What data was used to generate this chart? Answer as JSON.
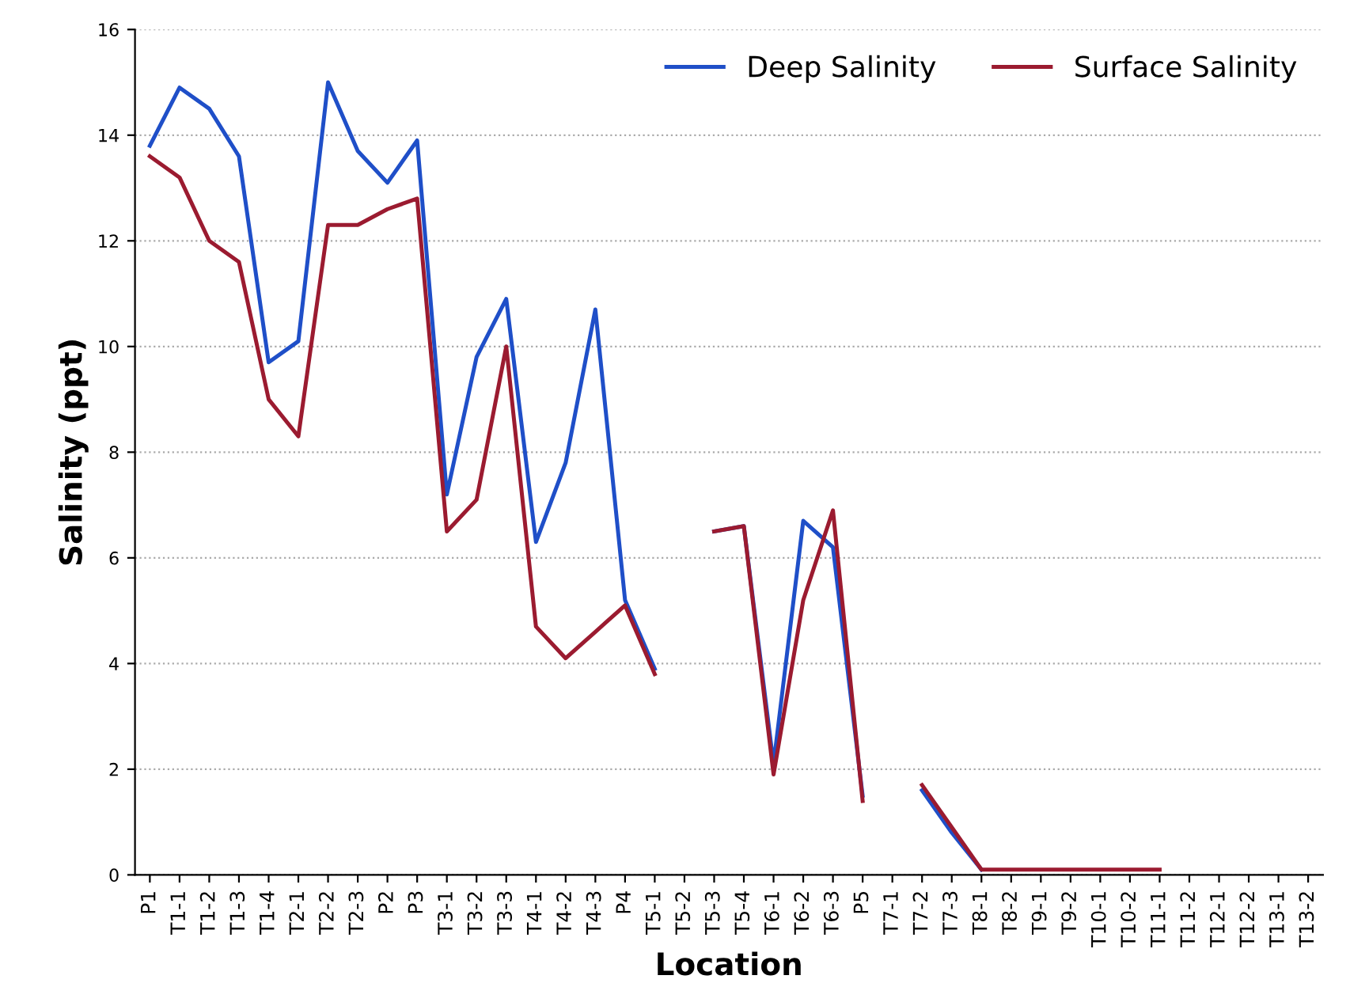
{
  "chart_data": {
    "type": "line",
    "xlabel": "Location",
    "ylabel": "Salinity (ppt)",
    "categories": [
      "P1",
      "T1-1",
      "T1-2",
      "T1-3",
      "T1-4",
      "T2-1",
      "T2-2",
      "T2-3",
      "P2",
      "P3",
      "T3-1",
      "T3-2",
      "T3-3",
      "T4-1",
      "T4-2",
      "T4-3",
      "P4",
      "T5-1",
      "T5-2",
      "T5-3",
      "T5-4",
      "T6-1",
      "T6-2",
      "T6-3",
      "P5",
      "T7-1",
      "T7-2",
      "T7-3",
      "T8-1",
      "T8-2",
      "T9-1",
      "T9-2",
      "T10-1",
      "T10-2",
      "T11-1",
      "T11-2",
      "T12-1",
      "T12-2",
      "T13-1",
      "T13-2"
    ],
    "series": [
      {
        "name": "Deep Salinity",
        "color": "#1f4fc8",
        "values": [
          13.8,
          14.9,
          14.5,
          13.6,
          9.7,
          10.1,
          15.0,
          13.7,
          13.1,
          13.9,
          7.2,
          9.8,
          10.9,
          6.3,
          7.8,
          10.7,
          5.2,
          3.9,
          null,
          6.5,
          6.6,
          2.1,
          6.7,
          6.2,
          1.5,
          null,
          1.6,
          0.8,
          0.1,
          null,
          null,
          null,
          null,
          null,
          null,
          null,
          null,
          null,
          null,
          null
        ]
      },
      {
        "name": "Surface Salinity",
        "color": "#9b1b30",
        "values": [
          13.6,
          13.2,
          12.0,
          11.6,
          9.0,
          8.3,
          12.3,
          12.3,
          12.6,
          12.8,
          6.5,
          7.1,
          10.0,
          4.7,
          4.1,
          4.6,
          5.1,
          3.8,
          null,
          6.5,
          6.6,
          1.9,
          5.2,
          6.9,
          1.4,
          null,
          1.7,
          0.9,
          0.1,
          0.1,
          0.1,
          0.1,
          0.1,
          0.1,
          0.1,
          null,
          null,
          null,
          null,
          null
        ]
      }
    ],
    "ylim": [
      0,
      16
    ],
    "yticks": [
      0,
      2,
      4,
      6,
      8,
      10,
      12,
      14,
      16
    ],
    "grid": "y",
    "legend": "top right",
    "marker": "none",
    "line_style": "solid"
  }
}
